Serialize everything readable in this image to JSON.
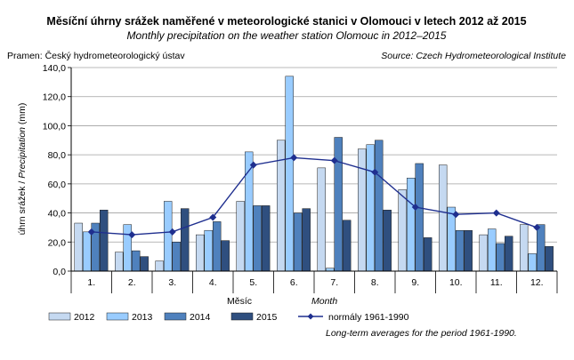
{
  "chart_data": {
    "type": "bar",
    "title": "Měsíční úhrny srážek naměřené v meteorologické stanici v Olomouci v letech 2012 až 2015",
    "subtitle": "Monthly precipitation on the weather station Olomouc in 2012–2015",
    "source_left": "Pramen: Český hydrometeorologický ústav",
    "source_right": "Source: Czech Hydrometeorological Institute",
    "ylabel_cz": "úhrn srážek / ",
    "ylabel_en": "Precipitation",
    "ylabel_unit": " (mm)",
    "xlabel_cz": "Měsíc",
    "xlabel_en": "Month",
    "ylim": [
      0,
      140
    ],
    "yticks": [
      "0,0",
      "20,0",
      "40,0",
      "60,0",
      "80,0",
      "100,0",
      "120,0",
      "140,0"
    ],
    "categories": [
      "1.",
      "2.",
      "3.",
      "4.",
      "5.",
      "6.",
      "7.",
      "8.",
      "9.",
      "10.",
      "11.",
      "12."
    ],
    "series": [
      {
        "name": "2012",
        "color": "#c5d9f1",
        "values": [
          33,
          13,
          7,
          25,
          48,
          90,
          71,
          84,
          56,
          73,
          25,
          32
        ]
      },
      {
        "name": "2013",
        "color": "#99ccff",
        "values": [
          27,
          32,
          48,
          28,
          82,
          134,
          2,
          87,
          64,
          44,
          29,
          12
        ]
      },
      {
        "name": "2014",
        "color": "#4f81bd",
        "values": [
          33,
          14,
          20,
          34,
          45,
          40,
          92,
          90,
          74,
          28,
          19,
          32
        ]
      },
      {
        "name": "2015",
        "color": "#2f4f7f",
        "values": [
          42,
          10,
          43,
          21,
          45,
          43,
          35,
          42,
          23,
          28,
          24,
          17
        ]
      }
    ],
    "line": {
      "name": "normály 1961-1990",
      "note": "Long-term averages for the period 1961-1990.",
      "color": "#1f2f8f",
      "values": [
        27,
        25,
        27,
        37,
        73,
        78,
        76,
        68,
        44,
        39,
        40,
        30
      ]
    },
    "grid": true
  }
}
